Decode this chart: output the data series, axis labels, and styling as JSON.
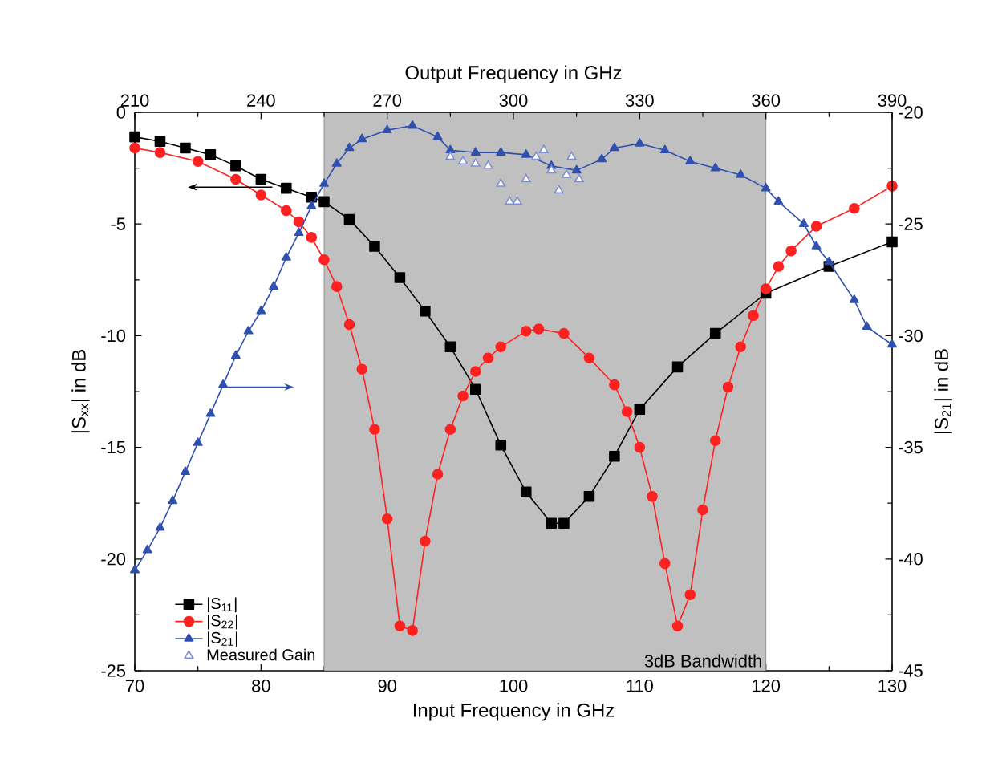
{
  "chart_data": {
    "type": "line",
    "xlabel": "Input Frequency in GHz",
    "ylabel": "|S$_{xx}$| in dB",
    "y2label": "|S$_{21}$| in dB",
    "x2label": "Output Frequency in GHz",
    "xlim": [
      70,
      130
    ],
    "xticks": [
      70,
      80,
      90,
      100,
      110,
      120,
      130
    ],
    "x2lim": [
      210,
      390
    ],
    "x2ticks": [
      210,
      240,
      270,
      300,
      330,
      360,
      390
    ],
    "ylim": [
      -25,
      0
    ],
    "yticks": [
      -25,
      -20,
      -15,
      -10,
      -5,
      0
    ],
    "y2lim": [
      -45,
      -20
    ],
    "y2ticks": [
      -45,
      -40,
      -35,
      -30,
      -25,
      -20
    ],
    "legend": "bottom left",
    "grid": false,
    "bands": [
      {
        "axis": "x",
        "from": 85,
        "to": 120,
        "label": "3dB Bandwidth",
        "color": "#c0c0c0"
      }
    ],
    "series": [
      {
        "name": "|S$_{11}$|",
        "color": "#000000",
        "marker": "square",
        "x": [
          70,
          72,
          74,
          76,
          78,
          80,
          82,
          84,
          85,
          87,
          89,
          91,
          93,
          95,
          97,
          99,
          101,
          103,
          104,
          106,
          108,
          110,
          113,
          116,
          120,
          125,
          130
        ],
        "values": [
          -1.1,
          -1.3,
          -1.6,
          -1.9,
          -2.4,
          -3.0,
          -3.4,
          -3.8,
          -4.0,
          -4.8,
          -6.0,
          -7.4,
          -8.9,
          -10.5,
          -12.4,
          -14.9,
          -17.0,
          -18.4,
          -18.4,
          -17.2,
          -15.4,
          -13.3,
          -11.4,
          -9.9,
          -8.1,
          -6.9,
          -5.8
        ]
      },
      {
        "name": "|S$_{22}$|",
        "color": "#ff2020",
        "marker": "circle",
        "x": [
          70,
          72,
          75,
          78,
          80,
          82,
          83,
          84,
          85,
          86,
          87,
          88,
          89,
          90,
          91,
          92,
          93,
          94,
          95,
          96,
          97,
          98,
          99,
          101,
          102,
          104,
          106,
          108,
          109,
          110,
          111,
          112,
          113,
          114,
          115,
          116,
          117,
          118,
          119,
          120,
          121,
          122,
          124,
          127,
          130
        ],
        "values": [
          -1.6,
          -1.8,
          -2.2,
          -3.0,
          -3.7,
          -4.4,
          -4.9,
          -5.6,
          -6.6,
          -7.8,
          -9.5,
          -11.5,
          -14.2,
          -18.2,
          -23.0,
          -23.2,
          -19.2,
          -16.2,
          -14.2,
          -12.7,
          -11.6,
          -11.0,
          -10.5,
          -9.8,
          -9.7,
          -9.9,
          -11.0,
          -12.2,
          -13.4,
          -15.0,
          -17.2,
          -20.2,
          -23.0,
          -21.6,
          -17.8,
          -14.7,
          -12.3,
          -10.5,
          -9.1,
          -7.9,
          -6.9,
          -6.2,
          -5.1,
          -4.3,
          -3.3
        ]
      },
      {
        "name": "|S$_{21}$|",
        "color": "#3050b0",
        "marker": "triangle",
        "axis": "y2",
        "x": [
          70,
          71,
          72,
          73,
          74,
          75,
          76,
          77,
          78,
          79,
          80,
          81,
          82,
          83,
          84,
          85,
          86,
          87,
          88,
          90,
          92,
          94,
          95,
          97,
          99,
          101,
          103,
          105,
          107,
          108,
          110,
          112,
          114,
          116,
          118,
          120,
          121,
          123,
          124,
          125,
          127,
          128,
          130
        ],
        "values": [
          -40.5,
          -39.6,
          -38.6,
          -37.4,
          -36.1,
          -34.8,
          -33.5,
          -32.2,
          -30.9,
          -29.8,
          -28.9,
          -27.8,
          -26.5,
          -25.4,
          -24.2,
          -23.2,
          -22.3,
          -21.6,
          -21.2,
          -20.8,
          -20.6,
          -21.1,
          -21.7,
          -21.8,
          -21.8,
          -21.9,
          -22.4,
          -22.6,
          -22.1,
          -21.6,
          -21.4,
          -21.7,
          -22.2,
          -22.5,
          -22.8,
          -23.4,
          -24.0,
          -25.0,
          -26.0,
          -26.7,
          -28.4,
          -29.6,
          -30.4
        ]
      },
      {
        "name": "Measured Gain",
        "color": "#7f8fd0",
        "marker": "triangle",
        "type": "scatter",
        "axis": "y2",
        "x": [
          95,
          96,
          97,
          98,
          99,
          99.7,
          100.3,
          101,
          101.8,
          102.4,
          103,
          103.6,
          104.2,
          104.6,
          105.2
        ],
        "values": [
          -22.0,
          -22.2,
          -22.3,
          -22.4,
          -23.2,
          -24.0,
          -24.0,
          -23.0,
          -22.0,
          -21.7,
          -22.6,
          -23.5,
          -22.8,
          -22.0,
          -23.0
        ]
      }
    ]
  }
}
